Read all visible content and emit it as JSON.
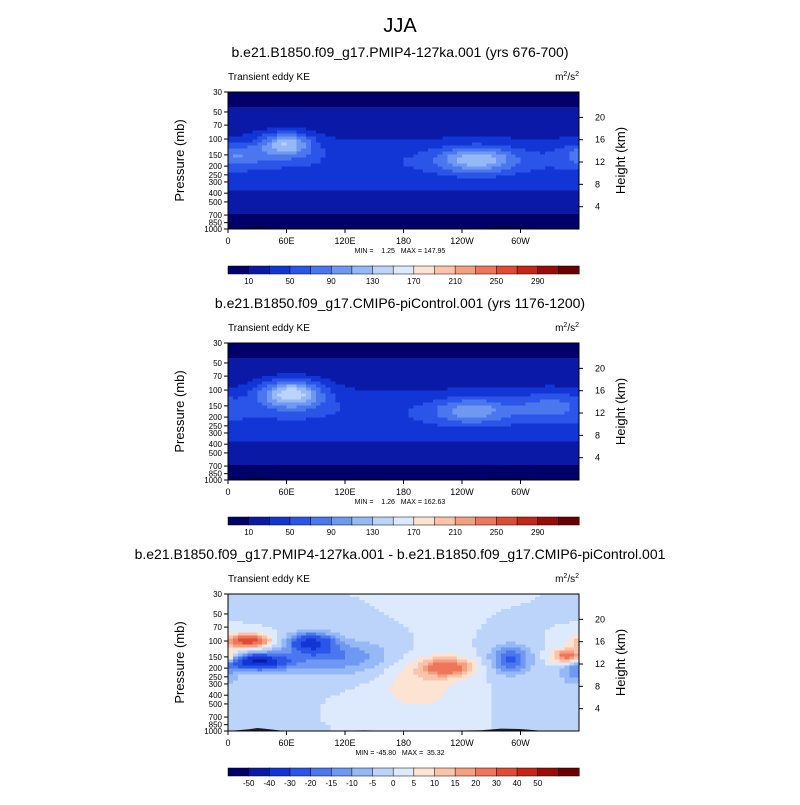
{
  "figure_title": "JJA",
  "colors": {
    "ke_scale": [
      "#00006b",
      "#0a1aa6",
      "#1235d6",
      "#2a55e8",
      "#4a77ee",
      "#6e98f2",
      "#95b8f6",
      "#bdd4fa",
      "#dde9fd",
      "#fde3d2",
      "#fbc4aa",
      "#f69f80",
      "#ef765a",
      "#e04b36",
      "#c42618",
      "#9a0c08",
      "#6b0000"
    ],
    "diff_scale": [
      "#00006b",
      "#0a1aa6",
      "#1235d6",
      "#2a55e8",
      "#4a77ee",
      "#6e98f2",
      "#95b8f6",
      "#bdd4fa",
      "#dde9fd",
      "#fde3d2",
      "#fbc4aa",
      "#f69f80",
      "#ef765a",
      "#e04b36",
      "#c42618",
      "#9a0c08",
      "#6b0000"
    ],
    "topography": "#000000"
  },
  "chart_data": [
    {
      "type": "contour",
      "title": "b.e21.B1850.f09_g17.PMIP4-127ka.001 (yrs 676-700)",
      "left_label": "Transient eddy KE",
      "units": "m²/s²",
      "units_base": "m",
      "units_exp1": "2",
      "units_mid": "/s",
      "units_exp2": "2",
      "ylabel": "Pressure (mb)",
      "ylabel_right": "Height (km)",
      "x_ticks": [
        "0",
        "60E",
        "120E",
        "180",
        "120W",
        "60W"
      ],
      "x_tick_values": [
        0,
        60,
        120,
        180,
        240,
        300
      ],
      "xlim": [
        0,
        360
      ],
      "y_ticks": [
        "30",
        "50",
        "70",
        "100",
        "150",
        "200",
        "250",
        "300",
        "400",
        "500",
        "700",
        "850",
        "1000"
      ],
      "y_tick_values": [
        30,
        50,
        70,
        100,
        150,
        200,
        250,
        300,
        400,
        500,
        700,
        850,
        1000
      ],
      "ylim": [
        30,
        1000
      ],
      "height_ticks": [
        "4",
        "8",
        "12",
        "16",
        "20"
      ],
      "height_tick_values": [
        4,
        8,
        12,
        16,
        20
      ],
      "stats": "MIN =    1.25   MAX = 147.95",
      "min": 1.25,
      "max": 147.95,
      "colorbar_labels": [
        "10",
        "50",
        "90",
        "130",
        "170",
        "210",
        "250",
        "290"
      ],
      "colorbar_levels": [
        10,
        30,
        50,
        70,
        90,
        110,
        130,
        150,
        170,
        190,
        210,
        230,
        250,
        270,
        290
      ]
    },
    {
      "type": "contour",
      "title": "b.e21.B1850.f09_g17.CMIP6-piControl.001 (yrs 1176-1200)",
      "left_label": "Transient eddy KE",
      "units": "m²/s²",
      "units_base": "m",
      "units_exp1": "2",
      "units_mid": "/s",
      "units_exp2": "2",
      "ylabel": "Pressure (mb)",
      "ylabel_right": "Height (km)",
      "x_ticks": [
        "0",
        "60E",
        "120E",
        "180",
        "120W",
        "60W"
      ],
      "x_tick_values": [
        0,
        60,
        120,
        180,
        240,
        300
      ],
      "xlim": [
        0,
        360
      ],
      "y_ticks": [
        "30",
        "50",
        "70",
        "100",
        "150",
        "200",
        "250",
        "300",
        "400",
        "500",
        "700",
        "850",
        "1000"
      ],
      "y_tick_values": [
        30,
        50,
        70,
        100,
        150,
        200,
        250,
        300,
        400,
        500,
        700,
        850,
        1000
      ],
      "ylim": [
        30,
        1000
      ],
      "height_ticks": [
        "4",
        "8",
        "12",
        "16",
        "20"
      ],
      "height_tick_values": [
        4,
        8,
        12,
        16,
        20
      ],
      "stats": "MIN =    1.26   MAX = 162.63",
      "min": 1.26,
      "max": 162.63,
      "colorbar_labels": [
        "10",
        "50",
        "90",
        "130",
        "170",
        "210",
        "250",
        "290"
      ],
      "colorbar_levels": [
        10,
        30,
        50,
        70,
        90,
        110,
        130,
        150,
        170,
        190,
        210,
        230,
        250,
        270,
        290
      ]
    },
    {
      "type": "contour",
      "title": "b.e21.B1850.f09_g17.PMIP4-127ka.001 - b.e21.B1850.f09_g17.CMIP6-piControl.001",
      "left_label": "Transient eddy KE",
      "units": "m²/s²",
      "units_base": "m",
      "units_exp1": "2",
      "units_mid": "/s",
      "units_exp2": "2",
      "ylabel": "Pressure (mb)",
      "ylabel_right": "Height (km)",
      "x_ticks": [
        "0",
        "60E",
        "120E",
        "180",
        "120W",
        "60W"
      ],
      "x_tick_values": [
        0,
        60,
        120,
        180,
        240,
        300
      ],
      "xlim": [
        0,
        360
      ],
      "y_ticks": [
        "30",
        "50",
        "70",
        "100",
        "150",
        "200",
        "250",
        "300",
        "400",
        "500",
        "700",
        "850",
        "1000"
      ],
      "y_tick_values": [
        30,
        50,
        70,
        100,
        150,
        200,
        250,
        300,
        400,
        500,
        700,
        850,
        1000
      ],
      "ylim": [
        30,
        1000
      ],
      "height_ticks": [
        "4",
        "8",
        "12",
        "16",
        "20"
      ],
      "height_tick_values": [
        4,
        8,
        12,
        16,
        20
      ],
      "stats": "MIN = -45.80   MAX =  35.32",
      "min": -45.8,
      "max": 35.32,
      "colorbar_labels": [
        "-50",
        "-40",
        "-30",
        "-20",
        "-15",
        "-10",
        "-5",
        "0",
        "5",
        "10",
        "15",
        "20",
        "30",
        "40",
        "50"
      ],
      "colorbar_levels": [
        -50,
        -40,
        -30,
        -20,
        -15,
        -10,
        -5,
        0,
        5,
        10,
        15,
        20,
        30,
        40,
        50
      ]
    }
  ]
}
